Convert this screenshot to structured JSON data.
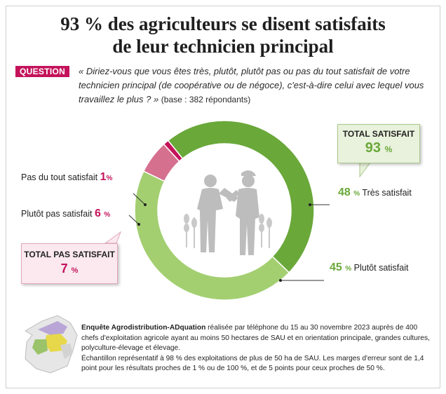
{
  "title_line1": "93 % des agriculteurs se disent satisfaits",
  "title_line2": "de leur technicien principal",
  "question": {
    "badge": "QUESTION",
    "text": "« Diriez-vous que vous êtes très, plutôt, plutôt pas ou pas du tout satisfait de votre technicien principal (de coopérative ou de négoce), c'est-à-dire celui avec lequel vous travaillez le plus ? »",
    "base": "(base : 382 répondants)"
  },
  "chart_data": {
    "type": "pie",
    "donut": true,
    "slices": [
      {
        "label": "Très satisfait",
        "value": 48,
        "color": "#6aa83a"
      },
      {
        "label": "Plutôt satisfait",
        "value": 45,
        "color": "#a3cf71"
      },
      {
        "label": "Plutôt pas satisfait",
        "value": 6,
        "color": "#d6708f"
      },
      {
        "label": "Pas du tout satisfait",
        "value": 1,
        "color": "#c4135b"
      }
    ],
    "unit": "%",
    "totals": [
      {
        "label": "TOTAL SATISFAIT",
        "value": 93
      },
      {
        "label": "TOTAL PAS SATISFAIT",
        "value": 7
      }
    ]
  },
  "labels": {
    "tres": {
      "value": "48",
      "unit": "%",
      "text": "Très satisfait"
    },
    "plutot": {
      "value": "45",
      "unit": "%",
      "text": "Plutôt satisfait"
    },
    "plutot_pas": {
      "text": "Plutôt pas satisfait",
      "value": "6",
      "unit": "%"
    },
    "pas_du_tout": {
      "text": "Pas du tout satisfait",
      "value": "1",
      "unit": "%"
    }
  },
  "box_satisfait": {
    "title": "TOTAL SATISFAIT",
    "value": "93",
    "unit": "%"
  },
  "box_pas_satisfait": {
    "title": "TOTAL PAS SATISFAIT",
    "value": "7",
    "unit": "%"
  },
  "note": {
    "bold": "Enquête Agrodistribution-ADquation",
    "line1": " réalisée par téléphone du 15 au 30 novembre 2023 auprès de 400 chefs d'exploitation agricole ayant au moins 50 hectares de SAU et en orientation principale, grandes cultures, polyculture-élevage et élevage.",
    "line2": "Échantillon représentatif à 98 % des exploitations de plus de 50 ha de SAU. Les marges d'erreur sont de 1,4 point pour les résultats proches de 1 % ou de 100 %, et de 5 points pour ceux proches de 50 %."
  },
  "colors": {
    "accent_green": "#6aa83a",
    "light_green": "#a3cf71",
    "accent_red": "#c4135b",
    "pink": "#d6708f"
  },
  "icons": [
    "handshake-illustration",
    "wheat-icon",
    "france-map"
  ]
}
